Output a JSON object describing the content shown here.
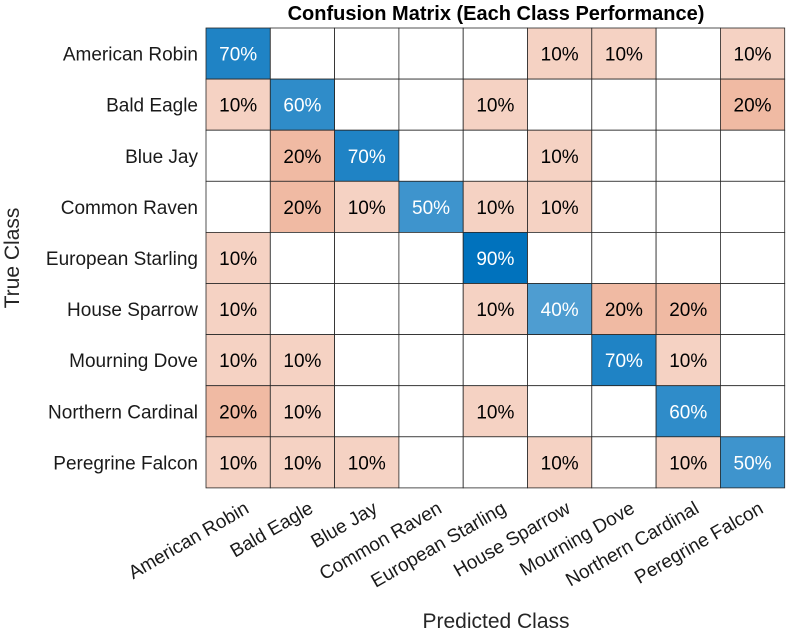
{
  "chart_data": {
    "type": "heatmap",
    "title": "Confusion Matrix (Each Class Performance)",
    "xlabel": "Predicted Class",
    "ylabel": "True Class",
    "x_categories": [
      "American Robin",
      "Bald Eagle",
      "Blue Jay",
      "Common Raven",
      "European Starling",
      "House Sparrow",
      "Mourning Dove",
      "Northern Cardinal",
      "Peregrine Falcon"
    ],
    "y_categories": [
      "American Robin",
      "Bald Eagle",
      "Blue Jay",
      "Common Raven",
      "European Starling",
      "House Sparrow",
      "Mourning Dove",
      "Northern Cardinal",
      "Peregrine Falcon"
    ],
    "value_suffix": "%",
    "values": [
      [
        70,
        0,
        0,
        0,
        0,
        10,
        10,
        0,
        10
      ],
      [
        10,
        60,
        0,
        0,
        10,
        0,
        0,
        0,
        20
      ],
      [
        0,
        20,
        70,
        0,
        0,
        10,
        0,
        0,
        0
      ],
      [
        0,
        20,
        10,
        50,
        10,
        10,
        0,
        0,
        0
      ],
      [
        10,
        0,
        0,
        0,
        90,
        0,
        0,
        0,
        0
      ],
      [
        10,
        0,
        0,
        0,
        10,
        40,
        20,
        20,
        0
      ],
      [
        10,
        10,
        0,
        0,
        0,
        0,
        70,
        10,
        0
      ],
      [
        20,
        10,
        0,
        0,
        10,
        0,
        0,
        60,
        0
      ],
      [
        10,
        10,
        10,
        0,
        0,
        10,
        0,
        10,
        50
      ]
    ],
    "colors": {
      "diagonal_high": "#0072bd",
      "diagonal_low": "#ffffff",
      "offdiagonal_high": "#d95319",
      "offdiagonal_low": "#ffffff",
      "grid": "#262626",
      "text_dark": "#000000",
      "text_light": "#ffffff"
    }
  }
}
